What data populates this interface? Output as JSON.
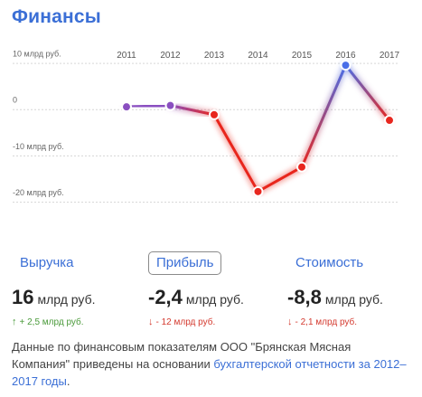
{
  "title": "Финансы",
  "chart_data": {
    "type": "line",
    "x": [
      "2011",
      "2012",
      "2013",
      "2014",
      "2015",
      "2016",
      "2017"
    ],
    "series": [
      {
        "values": [
          0.5,
          0.8,
          -1.2,
          -17.8,
          -12.5,
          9.5,
          -2.4
        ]
      }
    ],
    "y_ticks": [
      {
        "value": 10,
        "label": "10 млрд руб."
      },
      {
        "value": 0,
        "label": "0"
      },
      {
        "value": -10,
        "label": "-10 млрд руб."
      },
      {
        "value": -20,
        "label": "-20 млрд руб."
      }
    ],
    "ylim": [
      -22,
      12
    ],
    "grid": true,
    "colors": {
      "positive": "#4a6fe8",
      "negative": "#e8261e",
      "transition": "#8a4fc0"
    }
  },
  "metrics": [
    {
      "label": "Выручка",
      "value": "16",
      "unit": "млрд руб.",
      "delta": "+ 2,5 млрд руб.",
      "direction": "up",
      "arrow": "↑",
      "active": false
    },
    {
      "label": "Прибыль",
      "value": "-2,4",
      "unit": "млрд руб.",
      "delta": "- 12 млрд руб.",
      "direction": "down",
      "arrow": "↓",
      "active": true
    },
    {
      "label": "Стоимость",
      "value": "-8,8",
      "unit": "млрд руб.",
      "delta": "- 2,1 млрд руб.",
      "direction": "down",
      "arrow": "↓",
      "active": false
    }
  ],
  "note": {
    "text": "Данные по финансовым показателям ООО \"Брянская Мясная Компания\" приведены на основании ",
    "link": "бухгалтерской отчетности за 2012–2017 годы",
    "end": "."
  }
}
